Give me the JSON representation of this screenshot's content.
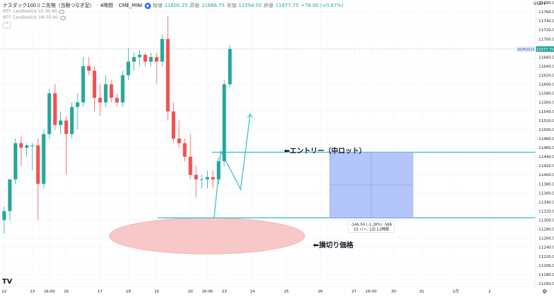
{
  "header": {
    "symbol": "ナスダック100ミニ先物（当限つなぎ足）",
    "interval": "4時間",
    "exchange": "CME_MINI",
    "o_label": "始値",
    "o_value": "11600.25",
    "h_label": "高値",
    "h_value": "11686.75",
    "l_label": "安値",
    "l_value": "11594.50",
    "c_label": "終値",
    "c_value": "11677.75",
    "change": "+78.00 (+0.67%)"
  },
  "indicators": [
    {
      "label": "MTF Candlestick 1D 50 90"
    },
    {
      "label": "MTF Candlestick 1W 50 90"
    }
  ],
  "currency": "USD",
  "price_tag": {
    "symbol": "NQM2023",
    "price": "11677.75"
  },
  "annotations": {
    "entry": "⬅エントリー（中ロット）",
    "stop": "⬅損切り価格"
  },
  "measure": {
    "line1": "-146.50 (-1.28%) -586",
    "line2": "15 バー, 2日 12時間"
  },
  "colors": {
    "up": "#26a69a",
    "down": "#ef5350",
    "line": "#4fc3d1",
    "box_fill": "#b3c5f9",
    "box_edge": "#7b97e8",
    "ellipse": "#f8c8c8"
  },
  "chart_data": {
    "type": "candlestick",
    "ylim": [
      11160,
      11780
    ],
    "y_ticks": [
      11780,
      11760,
      11740,
      11720,
      11700,
      11680,
      11660,
      11640,
      11620,
      11600,
      11580,
      11560,
      11540,
      11520,
      11500,
      11480,
      11460,
      11440,
      11420,
      11400,
      11380,
      11360,
      11340,
      11320,
      11300,
      11280,
      11260,
      11240,
      11220,
      11200,
      11180,
      11160
    ],
    "x_ticks": [
      {
        "label": "12",
        "i": 0
      },
      {
        "label": "13",
        "i": 5
      },
      {
        "label": "16:00",
        "i": 8
      },
      {
        "label": "16",
        "i": 11
      },
      {
        "label": "17",
        "i": 17
      },
      {
        "label": "18",
        "i": 22
      },
      {
        "label": "19",
        "i": 27
      },
      {
        "label": "20",
        "i": 33
      },
      {
        "label": "16:00",
        "i": 36
      },
      {
        "label": "23",
        "i": 39
      },
      {
        "label": "24",
        "i": 44
      },
      {
        "label": "25",
        "i": 50
      },
      {
        "label": "26",
        "i": 56
      },
      {
        "label": "27",
        "i": 62
      },
      {
        "label": "16:00",
        "i": 65
      },
      {
        "label": "30",
        "i": 69
      },
      {
        "label": "31",
        "i": 74
      },
      {
        "label": "2月",
        "i": 80
      },
      {
        "label": "2",
        "i": 86
      }
    ],
    "candles": [
      {
        "o": 11300,
        "h": 11330,
        "l": 11270,
        "c": 11320
      },
      {
        "o": 11320,
        "h": 11390,
        "l": 11300,
        "c": 11390
      },
      {
        "o": 11390,
        "h": 11480,
        "l": 11380,
        "c": 11470
      },
      {
        "o": 11470,
        "h": 11485,
        "l": 11420,
        "c": 11460
      },
      {
        "o": 11460,
        "h": 11470,
        "l": 11440,
        "c": 11465
      },
      {
        "o": 11465,
        "h": 11470,
        "l": 11410,
        "c": 11465
      },
      {
        "o": 11465,
        "h": 11480,
        "l": 11300,
        "c": 11380
      },
      {
        "o": 11380,
        "h": 11500,
        "l": 11370,
        "c": 11490
      },
      {
        "o": 11490,
        "h": 11590,
        "l": 11480,
        "c": 11580
      },
      {
        "o": 11580,
        "h": 11600,
        "l": 11500,
        "c": 11510
      },
      {
        "o": 11510,
        "h": 11540,
        "l": 11490,
        "c": 11520
      },
      {
        "o": 11520,
        "h": 11530,
        "l": 11400,
        "c": 11490
      },
      {
        "o": 11490,
        "h": 11560,
        "l": 11480,
        "c": 11550
      },
      {
        "o": 11550,
        "h": 11580,
        "l": 11500,
        "c": 11560
      },
      {
        "o": 11560,
        "h": 11660,
        "l": 11550,
        "c": 11640
      },
      {
        "o": 11640,
        "h": 11660,
        "l": 11620,
        "c": 11630
      },
      {
        "o": 11630,
        "h": 11640,
        "l": 11540,
        "c": 11570
      },
      {
        "o": 11570,
        "h": 11600,
        "l": 11530,
        "c": 11560
      },
      {
        "o": 11560,
        "h": 11620,
        "l": 11550,
        "c": 11600
      },
      {
        "o": 11600,
        "h": 11610,
        "l": 11560,
        "c": 11570
      },
      {
        "o": 11570,
        "h": 11580,
        "l": 11550,
        "c": 11560
      },
      {
        "o": 11560,
        "h": 11630,
        "l": 11550,
        "c": 11620
      },
      {
        "o": 11620,
        "h": 11680,
        "l": 11610,
        "c": 11650
      },
      {
        "o": 11650,
        "h": 11670,
        "l": 11630,
        "c": 11660
      },
      {
        "o": 11660,
        "h": 11675,
        "l": 11640,
        "c": 11665
      },
      {
        "o": 11665,
        "h": 11670,
        "l": 11640,
        "c": 11650
      },
      {
        "o": 11650,
        "h": 11670,
        "l": 11640,
        "c": 11660
      },
      {
        "o": 11660,
        "h": 11670,
        "l": 11600,
        "c": 11650
      },
      {
        "o": 11650,
        "h": 11710,
        "l": 11640,
        "c": 11700
      },
      {
        "o": 11700,
        "h": 11750,
        "l": 11520,
        "c": 11540
      },
      {
        "o": 11540,
        "h": 11560,
        "l": 11470,
        "c": 11480
      },
      {
        "o": 11480,
        "h": 11520,
        "l": 11460,
        "c": 11470
      },
      {
        "o": 11470,
        "h": 11480,
        "l": 11430,
        "c": 11440
      },
      {
        "o": 11440,
        "h": 11490,
        "l": 11390,
        "c": 11400
      },
      {
        "o": 11400,
        "h": 11420,
        "l": 11350,
        "c": 11390
      },
      {
        "o": 11390,
        "h": 11400,
        "l": 11370,
        "c": 11390
      },
      {
        "o": 11390,
        "h": 11410,
        "l": 11370,
        "c": 11395
      },
      {
        "o": 11395,
        "h": 11410,
        "l": 11370,
        "c": 11390
      },
      {
        "o": 11390,
        "h": 11440,
        "l": 11380,
        "c": 11430
      },
      {
        "o": 11430,
        "h": 11610,
        "l": 11420,
        "c": 11600
      },
      {
        "o": 11600,
        "h": 11687,
        "l": 11594,
        "c": 11678
      }
    ],
    "entry_price": 11450,
    "stop_price": 11305,
    "last_price": 11677.75
  }
}
